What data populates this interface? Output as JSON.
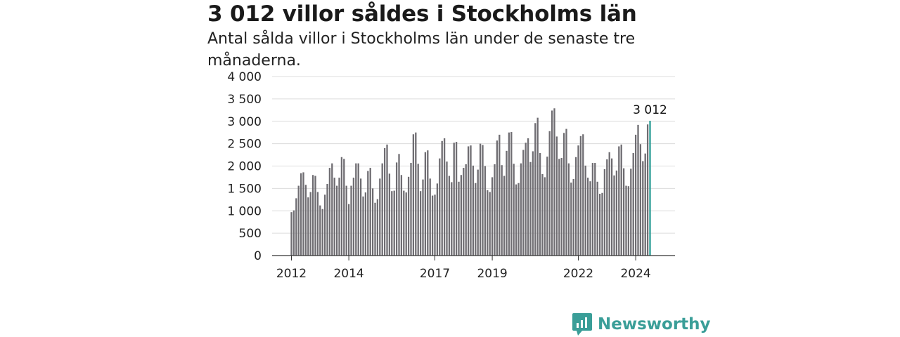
{
  "header": {
    "title": "3 012 villor såldes i Stockholms län",
    "subtitle": "Antal sålda villor i Stockholms län under de senaste tre månaderna."
  },
  "brand": {
    "name": "Newsworthy",
    "color": "#3a9e98"
  },
  "chart_data": {
    "type": "bar",
    "title": "3 012 villor såldes i Stockholms län",
    "subtitle": "Antal sålda villor i Stockholms län under de senaste tre månaderna.",
    "ylim": [
      0,
      4000
    ],
    "yticks": [
      0,
      500,
      1000,
      1500,
      2000,
      2500,
      3000,
      3500,
      4000
    ],
    "ytick_labels": [
      "0",
      "500",
      "1 000",
      "1 500",
      "2 000",
      "2 500",
      "3 000",
      "3 500",
      "4 000"
    ],
    "xtick_labels": [
      {
        "label": "2012",
        "index": 0
      },
      {
        "label": "2014",
        "index": 24
      },
      {
        "label": "2017",
        "index": 60
      },
      {
        "label": "2019",
        "index": 84
      },
      {
        "label": "2022",
        "index": 120
      },
      {
        "label": "2024",
        "index": 144
      }
    ],
    "grid": true,
    "bar_color": "#6f6d72",
    "highlight_color": "#2a9d96",
    "highlight_label": "3 012",
    "values": [
      970,
      1010,
      1280,
      1560,
      1840,
      1860,
      1580,
      1300,
      1420,
      1800,
      1780,
      1420,
      1120,
      1040,
      1360,
      1600,
      1960,
      2060,
      1740,
      1560,
      1740,
      2200,
      2160,
      1560,
      1150,
      1560,
      1740,
      2060,
      2060,
      1720,
      1320,
      1410,
      1890,
      1960,
      1500,
      1180,
      1260,
      1720,
      2060,
      2400,
      2480,
      1830,
      1440,
      1450,
      2080,
      2270,
      1800,
      1450,
      1410,
      1760,
      2070,
      2710,
      2750,
      2050,
      1440,
      1700,
      2310,
      2350,
      1720,
      1340,
      1360,
      1610,
      2170,
      2560,
      2620,
      2100,
      1780,
      1640,
      2520,
      2540,
      1650,
      1800,
      1960,
      2040,
      2440,
      2460,
      2010,
      1620,
      1920,
      2500,
      2470,
      2000,
      1460,
      1420,
      1750,
      2040,
      2570,
      2700,
      2020,
      1780,
      2340,
      2750,
      2760,
      2050,
      1590,
      1620,
      2060,
      2360,
      2520,
      2620,
      2090,
      2330,
      2960,
      3080,
      2290,
      1820,
      1750,
      2210,
      2780,
      3240,
      3290,
      2660,
      2160,
      2180,
      2740,
      2830,
      2060,
      1630,
      1710,
      2200,
      2460,
      2670,
      2710,
      2010,
      1740,
      1660,
      2070,
      2070,
      1650,
      1380,
      1400,
      1930,
      2150,
      2310,
      2170,
      1790,
      1900,
      2440,
      2480,
      1950,
      1560,
      1550,
      1940,
      2290,
      2700,
      2920,
      2490,
      2110,
      2280,
      2930,
      3012
    ]
  }
}
